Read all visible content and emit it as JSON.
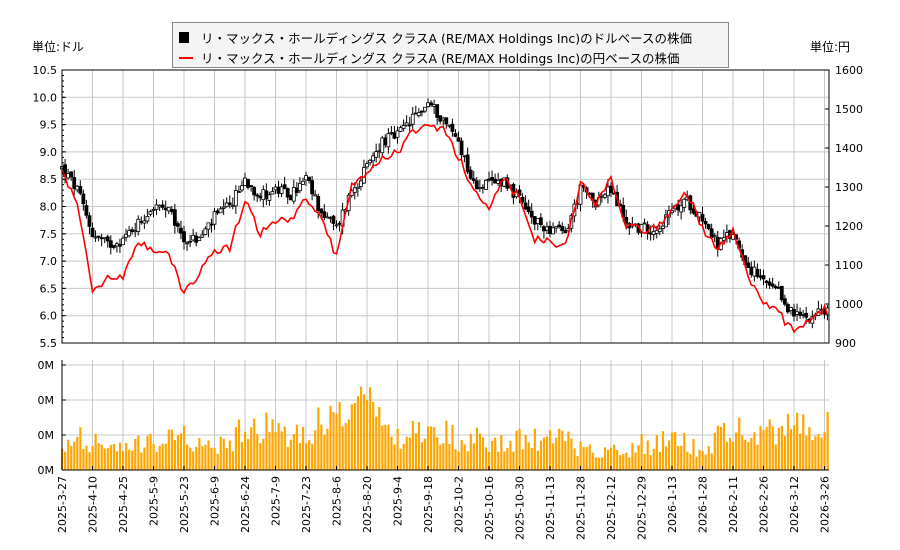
{
  "legend": {
    "usd_label": "リ・マックス・ホールディングス クラスA (RE/MAX Holdings Inc)のドルベースの株価",
    "jpy_label": "リ・マックス・ホールディングス クラスA (RE/MAX Holdings Inc)の円ベースの株価"
  },
  "units": {
    "left": "単位:ドル",
    "right": "単位:円"
  },
  "colors": {
    "candle": "#000000",
    "jpy_line": "#ff0000",
    "volume": "#ffa500",
    "grid": "#c8c8c8"
  },
  "chart_data": [
    {
      "type": "candlestick+line",
      "y_left": {
        "min": 5.5,
        "max": 10.5,
        "step": 0.5,
        "ticks": [
          "10.5",
          "10.0",
          "9.5",
          "9.0",
          "8.5",
          "8.0",
          "7.5",
          "7.0",
          "6.5",
          "6.0",
          "5.5"
        ]
      },
      "y_right": {
        "min": 900,
        "max": 1600,
        "step": 100,
        "ticks": [
          "1600",
          "1500",
          "1400",
          "1300",
          "1200",
          "1100",
          "1000",
          "900"
        ]
      },
      "grid": true,
      "x_ticks": [
        "2025-3-27",
        "2025-4-10",
        "2025-4-25",
        "2025-5-9",
        "2025-5-23",
        "2025-6-9",
        "2025-6-24",
        "2025-7-9",
        "2025-7-23",
        "2025-8-6",
        "2025-8-20",
        "2025-9-4",
        "2025-9-18",
        "2025-10-2",
        "2025-10-16",
        "2025-10-30",
        "2025-11-13",
        "2025-11-28",
        "2025-12-12",
        "2025-12-29",
        "2026-1-13",
        "2026-1-28",
        "2026-2-11",
        "2026-2-26",
        "2026-3-12",
        "2026-3-26"
      ],
      "usd_weekly_close": [
        8.7,
        8.3,
        7.5,
        7.3,
        7.4,
        7.7,
        8.0,
        7.9,
        7.4,
        7.4,
        7.8,
        8.0,
        8.5,
        8.2,
        8.3,
        8.2,
        8.5,
        7.9,
        7.6,
        8.3,
        8.7,
        9.2,
        9.3,
        9.6,
        9.9,
        9.6,
        9.2,
        8.4,
        8.4,
        8.5,
        8.1,
        7.7,
        7.6,
        7.5,
        8.3,
        8.1,
        8.3,
        7.7,
        7.6,
        7.6,
        7.9,
        8.1,
        7.8,
        7.3,
        7.5,
        6.9,
        6.6,
        6.4,
        6.0,
        6.0,
        6.1,
        5.8
      ],
      "jpy_weekly_close": [
        1338,
        1259,
        1036,
        1062,
        1069,
        1164,
        1138,
        1131,
        1028,
        1080,
        1138,
        1146,
        1267,
        1182,
        1215,
        1215,
        1267,
        1223,
        1120,
        1300,
        1326,
        1377,
        1387,
        1446,
        1464,
        1446,
        1380,
        1292,
        1249,
        1326,
        1267,
        1164,
        1164,
        1146,
        1310,
        1259,
        1318,
        1197,
        1190,
        1197,
        1241,
        1285,
        1197,
        1138,
        1190,
        1062,
        1003,
        977,
        926,
        959,
        985,
        950
      ]
    },
    {
      "type": "bar",
      "y_ticks": [
        "0M",
        "0M",
        "0M",
        "0M"
      ],
      "volume_weekly_relative": [
        0.5,
        0.9,
        0.8,
        0.6,
        0.5,
        0.7,
        0.7,
        0.8,
        0.9,
        0.7,
        0.6,
        0.7,
        1.3,
        1.2,
        1.0,
        1.0,
        1.2,
        1.3,
        1.4,
        1.5,
        1.7,
        1.3,
        0.8,
        1.0,
        1.1,
        1.1,
        0.8,
        0.9,
        0.7,
        0.7,
        0.9,
        0.8,
        0.8,
        0.9,
        0.6,
        0.5,
        0.6,
        0.5,
        0.7,
        0.7,
        0.9,
        0.8,
        0.5,
        0.9,
        0.9,
        1.2,
        1.1,
        0.9,
        1.4,
        1.0,
        1.2,
        1.4
      ]
    }
  ]
}
